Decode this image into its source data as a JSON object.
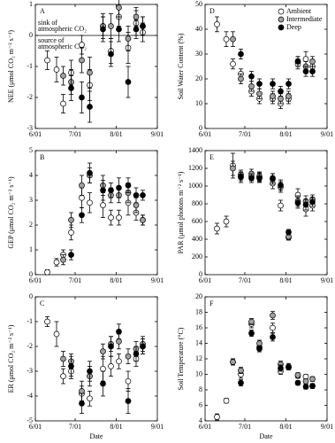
{
  "chart_data": [
    {
      "type": "scatter",
      "panel_label": "A",
      "y_label": "NEE (μmol CO₂ m⁻² s⁻¹)",
      "xlim": [
        "6/01",
        "9/01"
      ],
      "xticks": [
        "6/01",
        "7/01",
        "8/01",
        "9/01"
      ],
      "ylim": [
        -3,
        1
      ],
      "yticks": [
        -3,
        -2,
        -1,
        0,
        1
      ],
      "reference_line": 0,
      "annotations": [
        [
          "sink of",
          "atmospheric CO₂"
        ],
        [
          "source of",
          "atmospheric CO₂"
        ]
      ],
      "series": [
        {
          "color": "#ffffff",
          "x": [
            "6/10",
            "6/17",
            "6/22",
            "6/28",
            "7/06",
            "7/12",
            "7/22",
            "7/28",
            "8/03",
            "8/10",
            "8/16",
            "8/21"
          ],
          "values": [
            -0.8,
            -1.1,
            -2.2,
            -1.2,
            -0.3,
            -1.6,
            0.3,
            -0.5,
            0.6,
            -0.4,
            0.4,
            0.1
          ],
          "errors": [
            0.3,
            0.4,
            0.3,
            0.4,
            0.3,
            0.5,
            0.4,
            0.4,
            0.3,
            0.5,
            0.4,
            0.3
          ]
        },
        {
          "color": "#a0a0a0",
          "x": [
            "6/22",
            "6/28",
            "7/06",
            "7/12",
            "7/22",
            "7/28",
            "8/03",
            "8/10",
            "8/16",
            "8/21"
          ],
          "values": [
            -1.3,
            -1.5,
            -0.8,
            -1.2,
            0.3,
            0.3,
            0.9,
            -0.1,
            0.6,
            0.3
          ],
          "errors": [
            0.3,
            0.4,
            0.4,
            0.5,
            0.3,
            0.4,
            0.3,
            0.4,
            0.3,
            0.3
          ]
        },
        {
          "color": "#000000",
          "x": [
            "6/28",
            "7/06",
            "7/12",
            "7/22",
            "7/28",
            "8/03",
            "8/10",
            "8/16",
            "8/21"
          ],
          "values": [
            -1.7,
            -2.0,
            -2.3,
            0.2,
            -0.6,
            0.2,
            -1.5,
            0.2,
            0.3
          ],
          "errors": [
            0.4,
            0.5,
            0.5,
            0.4,
            0.4,
            0.4,
            0.5,
            0.3,
            0.3
          ]
        }
      ]
    },
    {
      "type": "scatter",
      "panel_label": "B",
      "y_label": "GEP (μmol CO₂ m⁻² s⁻¹)",
      "xlim": [
        "6/01",
        "9/01"
      ],
      "xticks": [
        "6/01",
        "7/01",
        "8/01",
        "9/01"
      ],
      "ylim": [
        0,
        5
      ],
      "yticks": [
        0,
        1,
        2,
        3,
        4,
        5
      ],
      "series": [
        {
          "color": "#ffffff",
          "x": [
            "6/10",
            "6/17",
            "6/22",
            "6/28",
            "7/06",
            "7/12",
            "7/22",
            "7/28",
            "8/03",
            "8/10",
            "8/16",
            "8/21"
          ],
          "values": [
            0.1,
            0.5,
            0.8,
            1.7,
            3.1,
            2.9,
            2.8,
            2.3,
            2.3,
            2.9,
            2.5,
            2.2
          ],
          "errors": [
            0.1,
            0.15,
            0.2,
            0.3,
            0.4,
            0.4,
            0.5,
            0.3,
            0.3,
            0.5,
            0.3,
            0.2
          ]
        },
        {
          "color": "#a0a0a0",
          "x": [
            "6/22",
            "6/28",
            "7/06",
            "7/12",
            "7/22",
            "7/28",
            "8/03",
            "8/10",
            "8/16",
            "8/21"
          ],
          "values": [
            0.6,
            2.2,
            3.6,
            4.0,
            3.6,
            3.2,
            3.2,
            3.3,
            2.8,
            2.2
          ],
          "errors": [
            0.2,
            0.3,
            0.4,
            0.3,
            0.4,
            0.3,
            0.3,
            0.4,
            0.3,
            0.2
          ]
        },
        {
          "color": "#000000",
          "x": [
            "6/28",
            "7/06",
            "7/12",
            "7/22",
            "7/28",
            "8/03",
            "8/10",
            "8/16",
            "8/21"
          ],
          "values": [
            0.8,
            2.4,
            4.1,
            3.4,
            3.4,
            3.5,
            3.6,
            3.2,
            3.2
          ],
          "errors": [
            0.2,
            0.3,
            0.4,
            0.4,
            0.3,
            0.4,
            0.3,
            0.3,
            0.2
          ]
        }
      ]
    },
    {
      "type": "scatter",
      "panel_label": "C",
      "y_label": "ER (μmol CO₂ m⁻² s⁻¹)",
      "x_label": "Date",
      "xlim": [
        "6/01",
        "9/01"
      ],
      "xticks": [
        "6/01",
        "7/01",
        "8/01",
        "9/01"
      ],
      "ylim": [
        -5,
        0
      ],
      "yticks": [
        -5,
        -4,
        -3,
        -2,
        -1,
        0
      ],
      "series": [
        {
          "color": "#ffffff",
          "x": [
            "6/10",
            "6/17",
            "6/22",
            "6/28",
            "7/06",
            "7/12",
            "7/22",
            "7/28",
            "8/03",
            "8/10",
            "8/16",
            "8/21"
          ],
          "values": [
            -1.0,
            -1.5,
            -3.2,
            -3.0,
            -3.9,
            -4.1,
            -2.9,
            -2.8,
            -2.6,
            -3.4,
            -2.5,
            -2.0
          ],
          "errors": [
            0.2,
            0.5,
            0.3,
            0.3,
            0.3,
            0.3,
            0.5,
            0.4,
            0.3,
            0.4,
            0.3,
            0.3
          ]
        },
        {
          "color": "#a0a0a0",
          "x": [
            "6/22",
            "6/28",
            "7/06",
            "7/12",
            "7/22",
            "7/28",
            "8/03",
            "8/10",
            "8/16",
            "8/21"
          ],
          "values": [
            -2.5,
            -2.6,
            -3.8,
            -3.2,
            -2.2,
            -1.9,
            -1.8,
            -2.4,
            -2.1,
            -1.9
          ],
          "errors": [
            0.3,
            0.3,
            0.4,
            0.4,
            0.3,
            0.3,
            0.3,
            0.3,
            0.3,
            0.3
          ]
        },
        {
          "color": "#000000",
          "x": [
            "6/28",
            "7/06",
            "7/12",
            "7/22",
            "7/28",
            "8/03",
            "8/10",
            "8/16",
            "8/21"
          ],
          "values": [
            -2.8,
            -4.3,
            -3.0,
            -3.5,
            -2.0,
            -1.4,
            -4.2,
            -2.3,
            -2.0
          ],
          "errors": [
            0.4,
            0.4,
            0.4,
            0.5,
            0.4,
            0.3,
            0.5,
            0.3,
            0.3
          ]
        }
      ]
    },
    {
      "type": "scatter",
      "panel_label": "D",
      "y_label": "Soil Water Content (%)",
      "xlim": [
        "6/01",
        "9/01"
      ],
      "xticks": [
        "6/01",
        "7/01",
        "8/01",
        "9/01"
      ],
      "ylim": [
        0,
        50
      ],
      "yticks": [
        0,
        10,
        20,
        30,
        40,
        50
      ],
      "legend": "upper right",
      "series": [
        {
          "name": "Ambient",
          "color": "#ffffff",
          "x": [
            "6/10",
            "6/17",
            "6/22",
            "6/28",
            "7/06",
            "7/12",
            "7/22",
            "7/28",
            "8/03",
            "8/10",
            "8/16",
            "8/21"
          ],
          "values": [
            42,
            36,
            26,
            22,
            15,
            12,
            12,
            10,
            12,
            26,
            28,
            25
          ],
          "errors": [
            3,
            3,
            2,
            2,
            2,
            2,
            2,
            2,
            2,
            2,
            3,
            2
          ]
        },
        {
          "name": "Intermediate",
          "color": "#a0a0a0",
          "x": [
            "6/22",
            "6/28",
            "7/06",
            "7/12",
            "7/22",
            "7/28",
            "8/03",
            "8/10",
            "8/16",
            "8/21"
          ],
          "values": [
            36,
            20,
            17,
            14,
            13,
            12,
            13,
            27,
            25,
            27
          ],
          "errors": [
            3,
            2,
            2,
            2,
            2,
            2,
            2,
            2,
            2,
            2
          ]
        },
        {
          "name": "Deep",
          "color": "#000000",
          "x": [
            "6/28",
            "7/06",
            "7/12",
            "7/22",
            "7/28",
            "8/03",
            "8/10",
            "8/16",
            "8/21"
          ],
          "values": [
            30,
            21,
            18,
            18,
            15,
            18,
            27,
            23,
            23
          ],
          "errors": [
            2,
            2,
            2,
            2,
            2,
            2,
            2,
            2,
            2
          ]
        }
      ]
    },
    {
      "type": "scatter",
      "panel_label": "E",
      "y_label": "PAR (μmol photons m⁻² s⁻¹)",
      "xlim": [
        "6/01",
        "9/01"
      ],
      "xticks": [
        "6/01",
        "7/01",
        "8/01",
        "9/01"
      ],
      "ylim": [
        0,
        1400
      ],
      "yticks": [
        0,
        200,
        400,
        600,
        800,
        1000,
        1200,
        1400
      ],
      "series": [
        {
          "color": "#ffffff",
          "x": [
            "6/10",
            "6/17",
            "6/22",
            "6/28",
            "7/06",
            "7/12",
            "7/22",
            "7/28",
            "8/03",
            "8/10",
            "8/16",
            "8/21"
          ],
          "values": [
            520,
            600,
            1230,
            1100,
            1110,
            1100,
            1030,
            780,
            420,
            900,
            740,
            780
          ],
          "errors": [
            60,
            60,
            140,
            60,
            50,
            50,
            60,
            60,
            30,
            70,
            80,
            60
          ]
        },
        {
          "color": "#a0a0a0",
          "x": [
            "6/22",
            "6/28",
            "7/06",
            "7/12",
            "7/22",
            "7/28",
            "8/03",
            "8/10",
            "8/16",
            "8/21"
          ],
          "values": [
            1200,
            1130,
            1140,
            1110,
            1080,
            990,
            430,
            830,
            830,
            850
          ],
          "errors": [
            80,
            50,
            50,
            50,
            60,
            60,
            30,
            60,
            60,
            50
          ]
        },
        {
          "color": "#000000",
          "x": [
            "6/28",
            "7/06",
            "7/12",
            "7/22",
            "7/28",
            "8/03",
            "8/10",
            "8/16",
            "8/21"
          ],
          "values": [
            1110,
            1090,
            1090,
            1090,
            1010,
            480,
            810,
            790,
            820
          ],
          "errors": [
            50,
            50,
            50,
            50,
            60,
            30,
            60,
            60,
            50
          ]
        }
      ]
    },
    {
      "type": "scatter",
      "panel_label": "F",
      "y_label": "Soil Temperature (°C)",
      "x_label": "Date",
      "xlim": [
        "6/01",
        "9/01"
      ],
      "xticks": [
        "6/01",
        "7/01",
        "8/01",
        "9/01"
      ],
      "ylim": [
        4,
        20
      ],
      "yticks": [
        4,
        6,
        8,
        10,
        12,
        14,
        16,
        18,
        20
      ],
      "series": [
        {
          "color": "#ffffff",
          "x": [
            "6/10",
            "6/17",
            "6/22",
            "6/28",
            "7/06",
            "7/12",
            "7/22",
            "7/28",
            "8/03",
            "8/10",
            "8/16",
            "8/21"
          ],
          "values": [
            4.5,
            6.6,
            11.6,
            10.0,
            16.5,
            13.5,
            16.0,
            10.4,
            11.0,
            9.8,
            9.7,
            8.5
          ],
          "errors": [
            0.4,
            0.3,
            0.4,
            0.5,
            0.5,
            0.4,
            0.6,
            0.4,
            0.4,
            0.3,
            0.3,
            0.3
          ]
        },
        {
          "color": "#a0a0a0",
          "x": [
            "6/22",
            "6/28",
            "7/06",
            "7/12",
            "7/22",
            "7/28",
            "8/03",
            "8/10",
            "8/16",
            "8/21"
          ],
          "values": [
            11.6,
            10.5,
            16.8,
            14.0,
            17.6,
            11.3,
            10.9,
            9.9,
            9.1,
            9.4
          ],
          "errors": [
            0.4,
            0.4,
            0.4,
            0.4,
            0.5,
            0.4,
            0.3,
            0.3,
            0.3,
            0.3
          ]
        },
        {
          "color": "#000000",
          "x": [
            "6/28",
            "7/06",
            "7/12",
            "7/22",
            "7/28",
            "8/03",
            "8/10",
            "8/16",
            "8/21"
          ],
          "values": [
            8.9,
            15.3,
            13.3,
            14.8,
            10.8,
            10.9,
            8.9,
            8.4,
            8.5
          ],
          "errors": [
            0.4,
            0.4,
            0.4,
            0.5,
            0.4,
            0.3,
            0.3,
            0.3,
            0.3
          ]
        }
      ]
    }
  ]
}
